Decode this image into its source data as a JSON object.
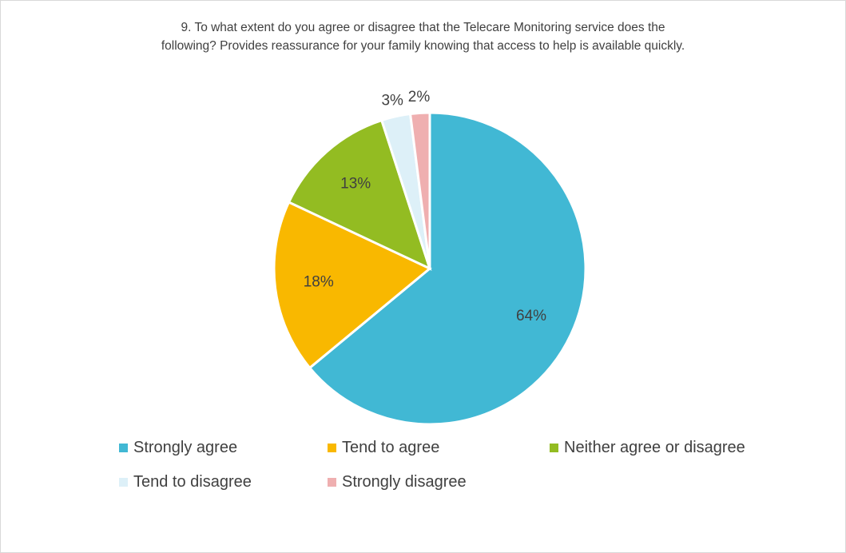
{
  "chart_data": {
    "type": "pie",
    "title_lines": [
      "9. To what extent do you agree or disagree that the Telecare Monitoring service does the",
      "following? Provides reassurance for your family knowing that access to help is available quickly."
    ],
    "categories": [
      "Strongly agree",
      "Tend to agree",
      "Neither agree or disagree",
      "Tend to disagree",
      "Strongly disagree"
    ],
    "values": [
      64,
      18,
      13,
      3,
      2
    ],
    "data_labels": [
      "64%",
      "18%",
      "13%",
      "3%",
      "2%"
    ],
    "colors": [
      "#41B8D4",
      "#F9B800",
      "#93BC22",
      "#DDF0F8",
      "#EFAFB0"
    ],
    "legend_placement": "bottom"
  }
}
